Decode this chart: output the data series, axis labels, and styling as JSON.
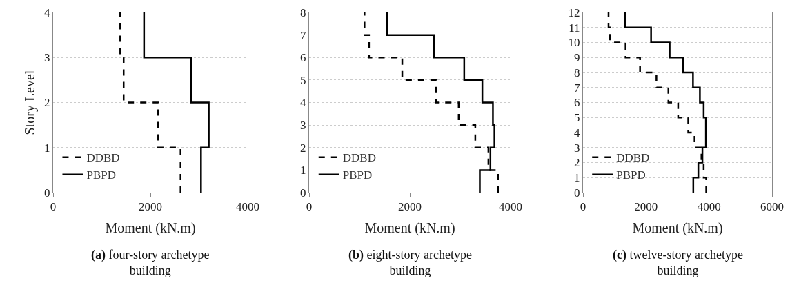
{
  "chart_data": [
    {
      "type": "line",
      "title": "(a) four-story archetype building",
      "xlabel": "Moment (kN.m)",
      "ylabel": "Story Level",
      "xlim": [
        0,
        4000
      ],
      "xticks": [
        0,
        2000,
        4000
      ],
      "ylim": [
        0,
        4
      ],
      "yticks": [
        0,
        1,
        2,
        3,
        4
      ],
      "grid": "y",
      "legend": "bottom left",
      "series": [
        {
          "name": "DDBD",
          "color": "#000000",
          "line_style": "dashed",
          "x": [
            2620,
            2620,
            2160,
            2160,
            1450,
            1450,
            1380,
            1380
          ],
          "values": [
            0,
            1,
            1,
            2,
            2,
            3,
            3,
            4
          ]
        },
        {
          "name": "PBPD",
          "color": "#000000",
          "line_style": "solid",
          "x": [
            3040,
            3040,
            3200,
            3200,
            2840,
            2840,
            1870,
            1870
          ],
          "values": [
            0,
            1,
            1,
            2,
            2,
            3,
            3,
            4
          ]
        }
      ]
    },
    {
      "type": "line",
      "title": "(b) eight-story archetype building",
      "xlabel": "Moment (kN.m)",
      "xlim": [
        0,
        4000
      ],
      "xticks": [
        0,
        2000,
        4000
      ],
      "ylim": [
        0,
        8
      ],
      "yticks": [
        0,
        1,
        2,
        3,
        4,
        5,
        6,
        7,
        8
      ],
      "grid": "y",
      "legend": "bottom left",
      "series": [
        {
          "name": "DDBD",
          "color": "#000000",
          "line_style": "dashed",
          "x": [
            3750,
            3750,
            3560,
            3560,
            3300,
            3300,
            2970,
            2970,
            2520,
            2520,
            1850,
            1850,
            1190,
            1190,
            1100,
            1100
          ],
          "values": [
            0,
            1,
            1,
            2,
            2,
            3,
            3,
            4,
            4,
            5,
            5,
            6,
            6,
            7,
            7,
            8
          ]
        },
        {
          "name": "PBPD",
          "color": "#000000",
          "line_style": "solid",
          "x": [
            3390,
            3390,
            3600,
            3600,
            3680,
            3680,
            3650,
            3650,
            3440,
            3440,
            3080,
            3080,
            2480,
            2480,
            1550,
            1550
          ],
          "values": [
            0,
            1,
            1,
            2,
            2,
            3,
            3,
            4,
            4,
            5,
            5,
            6,
            6,
            7,
            7,
            8
          ]
        }
      ]
    },
    {
      "type": "line",
      "title": "(c) twelve-story archetype building",
      "xlabel": "Moment (kN.m)",
      "xlim": [
        0,
        6000
      ],
      "xticks": [
        0,
        2000,
        4000,
        6000
      ],
      "ylim": [
        0,
        12
      ],
      "yticks": [
        0,
        1,
        2,
        3,
        4,
        5,
        6,
        7,
        8,
        9,
        10,
        11,
        12
      ],
      "grid": "y",
      "legend": "bottom left",
      "series": [
        {
          "name": "DDBD",
          "color": "#000000",
          "line_style": "dashed",
          "x": [
            3910,
            3910,
            3830,
            3830,
            3760,
            3760,
            3540,
            3540,
            3340,
            3340,
            3020,
            3020,
            2710,
            2710,
            2330,
            2330,
            1810,
            1810,
            1350,
            1350,
            860,
            860,
            810,
            810
          ],
          "values": [
            0,
            1,
            1,
            2,
            2,
            3,
            3,
            4,
            4,
            5,
            5,
            6,
            6,
            7,
            7,
            8,
            8,
            9,
            9,
            10,
            10,
            11,
            11,
            12
          ]
        },
        {
          "name": "PBPD",
          "color": "#000000",
          "line_style": "solid",
          "x": [
            3500,
            3500,
            3660,
            3660,
            3790,
            3790,
            3900,
            3900,
            3900,
            3900,
            3830,
            3830,
            3710,
            3710,
            3490,
            3490,
            3170,
            3170,
            2750,
            2750,
            2160,
            2160,
            1330,
            1330
          ],
          "values": [
            0,
            1,
            1,
            2,
            2,
            3,
            3,
            4,
            4,
            5,
            5,
            6,
            6,
            7,
            7,
            8,
            8,
            9,
            9,
            10,
            10,
            11,
            11,
            12
          ]
        }
      ]
    }
  ]
}
